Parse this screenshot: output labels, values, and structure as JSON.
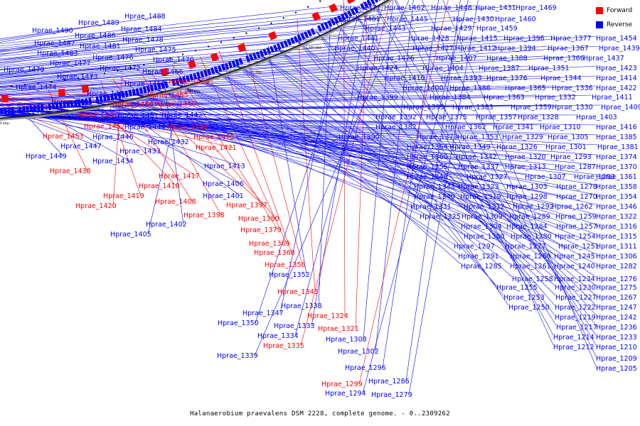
{
  "caption": "Halanaerobium praevalens DSM 2228, complete genome. - 0..2309262",
  "legend": {
    "forward": {
      "label": "Forward",
      "color": "#ff0000"
    },
    "reverse": {
      "label": "Reverse",
      "color": "#0000ff"
    }
  },
  "scale_labels": [
    "1640 kbp",
    "1620 kbp",
    "1600 kbp",
    "1580 kbp",
    "1560 kbp",
    "1540 kbp",
    "1520 kbp",
    "1500 kbp",
    "1480 kbp",
    "1460 kbp",
    "1440 kbp",
    "1420 kbp",
    "1400 kbp",
    "1380 kbp",
    "1360 kbp",
    "1340 kbp"
  ],
  "genes_left": [
    {
      "t": "Hprae_1490",
      "s": "r"
    },
    {
      "t": "Hprae_1489",
      "s": "r"
    },
    {
      "t": "Hprae_1488",
      "s": "r"
    },
    {
      "t": "Hprae_1486",
      "s": "r"
    },
    {
      "t": "Hprae_1484",
      "s": "r"
    },
    {
      "t": "Hprae_1487",
      "s": "r"
    },
    {
      "t": "Hprae_1481",
      "s": "r"
    },
    {
      "t": "Hprae_1478",
      "s": "r"
    },
    {
      "t": "Hprae_1483",
      "s": "r"
    },
    {
      "t": "Hprae_1475",
      "s": "r"
    },
    {
      "t": "Hprae_1476",
      "s": "r"
    },
    {
      "t": "Hprae_1477",
      "s": "r"
    },
    {
      "t": "Hprae_1470",
      "s": "r"
    },
    {
      "t": "Hprae_1479",
      "s": "r"
    },
    {
      "t": "Hprae_1472",
      "s": "r"
    },
    {
      "t": "Hprae_1473",
      "s": "r"
    },
    {
      "t": "Hprae_1466",
      "s": "r"
    },
    {
      "t": "Hprae_1474",
      "s": "r"
    },
    {
      "t": "Hprae_1463",
      "s": "r"
    },
    {
      "t": "Hprae_1458",
      "s": "f"
    },
    {
      "t": "Hprae_1464",
      "s": "r"
    },
    {
      "t": "Hprae_1455",
      "s": "f"
    },
    {
      "t": "Hprae_1465",
      "s": "r"
    },
    {
      "t": "Hprae_1456",
      "s": "f"
    },
    {
      "t": "Hprae_1450",
      "s": "f"
    },
    {
      "t": "Hprae_1467",
      "s": "r"
    },
    {
      "t": "Hprae_1457",
      "s": "f"
    },
    {
      "t": "Hprae_1451",
      "s": "r"
    },
    {
      "t": "Hprae_1442",
      "s": "r"
    },
    {
      "t": "Hprae_1452",
      "s": "f"
    },
    {
      "t": "Hprae_1444",
      "s": "r"
    },
    {
      "t": "Hprae_1436",
      "s": "f"
    },
    {
      "t": "Hprae_1453",
      "s": "f"
    },
    {
      "t": "Hprae_1446",
      "s": "r"
    },
    {
      "t": "Hprae_1425",
      "s": "f"
    },
    {
      "t": "Hprae_1447",
      "s": "r"
    },
    {
      "t": "Hprae_1432",
      "s": "r"
    },
    {
      "t": "Hprae_1421",
      "s": "f"
    },
    {
      "t": "Hprae_1449",
      "s": "r"
    },
    {
      "t": "Hprae_1433",
      "s": "r"
    },
    {
      "t": "Hprae_1434",
      "s": "r"
    },
    {
      "t": "Hprae_1413",
      "s": "r"
    },
    {
      "t": "Hprae_1438",
      "s": "f"
    },
    {
      "t": "Hprae_1417",
      "s": "f"
    },
    {
      "t": "Hprae_1418",
      "s": "f"
    },
    {
      "t": "Hprae_1406",
      "s": "r"
    },
    {
      "t": "Hprae_1419",
      "s": "f"
    },
    {
      "t": "Hprae_1401",
      "s": "r"
    },
    {
      "t": "Hprae_1408",
      "s": "f"
    },
    {
      "t": "Hprae_1397",
      "s": "f"
    },
    {
      "t": "Hprae_1420",
      "s": "f"
    },
    {
      "t": "Hprae_1398",
      "s": "f"
    },
    {
      "t": "Hprae_1380",
      "s": "f"
    },
    {
      "t": "Hprae_1402",
      "s": "r"
    },
    {
      "t": "Hprae_1379",
      "s": "f"
    },
    {
      "t": "Hprae_1405",
      "s": "r"
    },
    {
      "t": "Hprae_1369",
      "s": "f"
    },
    {
      "t": "Hprae_1368",
      "s": "f"
    },
    {
      "t": "Hprae_1356",
      "s": "f"
    },
    {
      "t": "Hprae_1352",
      "s": "r"
    },
    {
      "t": "Hprae_1345",
      "s": "f"
    },
    {
      "t": "Hprae_1338",
      "s": "r"
    },
    {
      "t": "Hprae_1347",
      "s": "r"
    },
    {
      "t": "Hprae_1324",
      "s": "f"
    },
    {
      "t": "Hprae_1350",
      "s": "r"
    },
    {
      "t": "Hprae_1333",
      "s": "r"
    },
    {
      "t": "Hprae_1321",
      "s": "f"
    },
    {
      "t": "Hprae_1334",
      "s": "r"
    },
    {
      "t": "Hprae_1308",
      "s": "r"
    },
    {
      "t": "Hprae_1335",
      "s": "f"
    },
    {
      "t": "Hprae_1302",
      "s": "r"
    },
    {
      "t": "Hprae_1339",
      "s": "r"
    },
    {
      "t": "Hprae_1296",
      "s": "r"
    },
    {
      "t": "Hprae_1286",
      "s": "r"
    },
    {
      "t": "Hprae_1299",
      "s": "f"
    },
    {
      "t": "Hprae_1279",
      "s": "r"
    },
    {
      "t": "Hprae_1294",
      "s": "r"
    }
  ],
  "genes_right": [
    "Hprae_1471",
    "Hprae_1462",
    "Hprae_1448",
    "Hprae_1431",
    "Hprae_1469",
    "Hprae_1461",
    "Hprae_1445",
    "Hprae_1430",
    "Hprae_1460",
    "Hprae_1443",
    "Hprae_1429",
    "Hprae_1459",
    "Hprae_1441",
    "Hprae_1428",
    "Hprae_1415",
    "Hprae_1396",
    "Hprae_1377",
    "Hprae_1454",
    "Hprae_1440",
    "Hprae_1427",
    "Hprae_1412",
    "Hprae_1394",
    "Hprae_1367",
    "Hprae_1439",
    "Hprae_1426",
    "Hprae_1407",
    "Hprae_1388",
    "Hprae_1366",
    "Hprae_1437",
    "Hprae_1424",
    "Hprae_1404",
    "Hprae_1387",
    "Hprae_1351",
    "Hprae_1423",
    "Hprae_1410",
    "Hprae_1393",
    "Hprae_1376",
    "Hprae_1344",
    "Hprae_1414",
    "Hprae_1400",
    "Hprae_1386",
    "Hprae_1365",
    "Hprae_1336",
    "Hprae_1422",
    "Hprae_1399",
    "Hprae_1384",
    "Hprae_1363",
    "Hprae_1332",
    "Hprae_1411",
    "Hprae_1395",
    "Hprae_1383",
    "Hprae_1359",
    "Hprae_1330",
    "Hprae_1409",
    "Hprae_1392",
    "Hprae_1375",
    "Hprae_1357",
    "Hprae_1328",
    "Hprae_1403",
    "Hprae_1382",
    "Hprae_1362",
    "Hprae_1341",
    "Hprae_1310",
    "Hprae_1416",
    "Hprae_1390",
    "Hprae_1373",
    "Hprae_1353",
    "Hprae_1329",
    "Hprae_1305",
    "Hprae_1385",
    "Hprae_1364",
    "Hprae_1349",
    "Hprae_1326",
    "Hprae_1301",
    "Hprae_1381",
    "Hprae_1360",
    "Hprae_1342",
    "Hprae_1320",
    "Hprae_1293",
    "Hprae_1374",
    "Hprae_1355",
    "Hprae_1337",
    "Hprae_1313",
    "Hprae_1287",
    "Hprae_1370",
    "Hprae_1348",
    "Hprae_1327",
    "Hprae_1307",
    "Hprae_1283",
    "Hprae_1361",
    "Hprae_1343",
    "Hprae_1323",
    "Hprae_1303",
    "Hprae_1278",
    "Hprae_1358",
    "Hprae_1340",
    "Hprae_1319",
    "Hprae_1298",
    "Hprae_1270",
    "Hprae_1354",
    "Hprae_1331",
    "Hprae_1312",
    "Hprae_1292",
    "Hprae_1262",
    "Hprae_1346",
    "Hprae_1325",
    "Hprae_1309",
    "Hprae_1289",
    "Hprae_1259",
    "Hprae_1322",
    "Hprae_1304",
    "Hprae_1284",
    "Hprae_1257",
    "Hprae_1316",
    "Hprae_1300",
    "Hprae_1280",
    "Hprae_1254",
    "Hprae_1315",
    "Hprae_1297",
    "Hprae_1277",
    "Hprae_1251",
    "Hprae_1311",
    "Hprae_1291",
    "Hprae_1269",
    "Hprae_1245",
    "Hprae_1306",
    "Hprae_1285",
    "Hprae_1261",
    "Hprae_1240",
    "Hprae_1282",
    "Hprae_1258",
    "Hprae_1234",
    "Hprae_1276",
    "Hprae_1255",
    "Hprae_1230",
    "Hprae_1275",
    "Hprae_1253",
    "Hprae_1227",
    "Hprae_1267",
    "Hprae_1250",
    "Hprae_1222",
    "Hprae_1247",
    "Hprae_1219",
    "Hprae_1242",
    "Hprae_1217",
    "Hprae_1236",
    "Hprae_1214",
    "Hprae_1233",
    "Hprae_1212",
    "Hprae_1210",
    "Hprae_1209",
    "Hprae_1205"
  ]
}
